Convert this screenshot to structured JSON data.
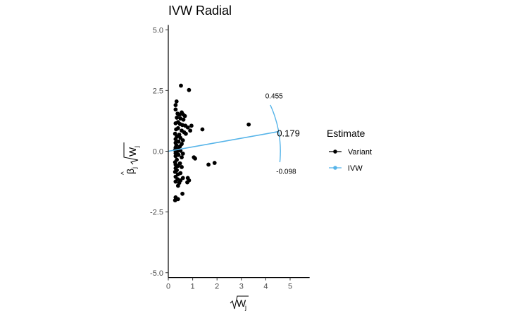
{
  "chart_data": {
    "type": "scatter",
    "title": "IVW Radial",
    "xlabel": "√Wj",
    "ylabel": "β̂j√Wj",
    "xlim": [
      0,
      5.8
    ],
    "ylim": [
      -5.2,
      5.2
    ],
    "x_ticks": [
      0,
      1,
      2,
      3,
      4,
      5
    ],
    "y_ticks": [
      -5.0,
      -2.5,
      0.0,
      2.5,
      5.0
    ],
    "y_tick_labels": [
      "-5.0",
      "-2.5",
      "0.0",
      "2.5",
      "5.0"
    ],
    "grid": false,
    "legend": {
      "title": "Estimate",
      "position": "right",
      "entries": [
        {
          "name": "Variant",
          "color": "#000000"
        },
        {
          "name": "IVW",
          "color": "#56B4E9"
        }
      ]
    },
    "ivw": {
      "slope": 0.179,
      "upper_slope": 0.455,
      "lower_slope": -0.098,
      "line_end_x": 4.53,
      "arc_radius": 4.6,
      "label_main": "0.179",
      "label_upper": "0.455",
      "label_lower": "-0.098",
      "color": "#56B4E9"
    },
    "series": [
      {
        "name": "Variant",
        "color": "#000000",
        "points": [
          [
            0.52,
            2.7
          ],
          [
            0.85,
            2.52
          ],
          [
            0.34,
            2.05
          ],
          [
            0.3,
            1.9
          ],
          [
            0.3,
            1.72
          ],
          [
            0.38,
            1.55
          ],
          [
            0.55,
            1.6
          ],
          [
            0.6,
            1.52
          ],
          [
            0.45,
            1.5
          ],
          [
            0.68,
            1.45
          ],
          [
            0.35,
            1.38
          ],
          [
            0.5,
            1.35
          ],
          [
            0.62,
            1.3
          ],
          [
            0.4,
            1.2
          ],
          [
            0.3,
            1.15
          ],
          [
            0.48,
            1.12
          ],
          [
            0.58,
            1.08
          ],
          [
            0.7,
            1.05
          ],
          [
            0.95,
            1.05
          ],
          [
            0.8,
            0.98
          ],
          [
            0.4,
            0.95
          ],
          [
            0.32,
            0.9
          ],
          [
            0.55,
            0.85
          ],
          [
            1.4,
            0.9
          ],
          [
            0.9,
            0.85
          ],
          [
            0.72,
            0.72
          ],
          [
            0.65,
            0.78
          ],
          [
            0.28,
            0.72
          ],
          [
            0.45,
            0.68
          ],
          [
            0.35,
            0.6
          ],
          [
            0.5,
            0.55
          ],
          [
            0.3,
            0.5
          ],
          [
            0.6,
            0.45
          ],
          [
            0.42,
            0.4
          ],
          [
            0.3,
            0.35
          ],
          [
            0.55,
            0.3
          ],
          [
            0.33,
            0.25
          ],
          [
            0.48,
            0.2
          ],
          [
            0.3,
            0.15
          ],
          [
            0.4,
            0.1
          ],
          [
            0.28,
            0.05
          ],
          [
            0.5,
            0.02
          ],
          [
            0.35,
            -0.03
          ],
          [
            0.3,
            -0.08
          ],
          [
            0.6,
            -0.1
          ],
          [
            0.42,
            -0.15
          ],
          [
            0.3,
            -0.2
          ],
          [
            0.55,
            -0.25
          ],
          [
            1.05,
            -0.25
          ],
          [
            1.1,
            -0.3
          ],
          [
            0.35,
            -0.35
          ],
          [
            0.28,
            -0.45
          ],
          [
            0.48,
            -0.5
          ],
          [
            0.3,
            -0.55
          ],
          [
            0.4,
            -0.6
          ],
          [
            0.55,
            -0.65
          ],
          [
            0.3,
            -0.7
          ],
          [
            0.35,
            -0.78
          ],
          [
            0.28,
            -0.85
          ],
          [
            0.5,
            -0.9
          ],
          [
            0.4,
            -0.95
          ],
          [
            0.3,
            -1.05
          ],
          [
            0.6,
            -1.1
          ],
          [
            0.38,
            -1.15
          ],
          [
            0.3,
            -1.25
          ],
          [
            0.45,
            -1.3
          ],
          [
            0.5,
            -1.2
          ],
          [
            0.8,
            -1.1
          ],
          [
            0.85,
            -1.2
          ],
          [
            0.78,
            -1.28
          ],
          [
            0.4,
            -1.42
          ],
          [
            1.9,
            -0.48
          ],
          [
            1.65,
            -0.55
          ],
          [
            3.3,
            1.1
          ],
          [
            0.58,
            -1.75
          ],
          [
            0.3,
            -1.9
          ],
          [
            0.28,
            -2.02
          ],
          [
            0.4,
            -1.97
          ]
        ]
      }
    ]
  }
}
